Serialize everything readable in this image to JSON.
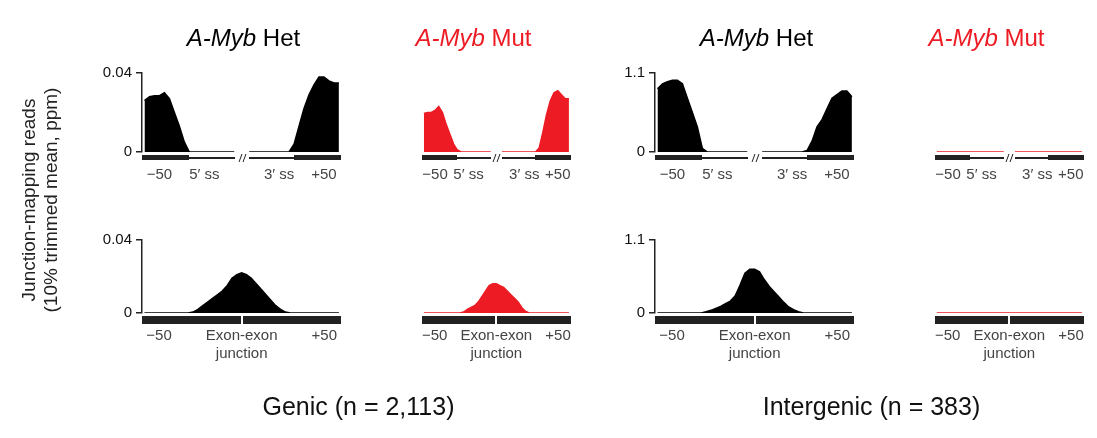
{
  "chart_data": [
    {
      "type": "area",
      "title": "A-Myb Het",
      "ylabel": "Junction-mapping reads (10% trimmed mean, ppm)",
      "categories": [
        null,
        null,
        null,
        "−50",
        null,
        null,
        null,
        null,
        null,
        null,
        null,
        null,
        "5′ ss",
        null,
        null,
        null,
        null,
        null,
        null,
        null,
        null,
        null,
        null,
        null,
        null,
        null,
        null,
        "3′ ss",
        null,
        null,
        null,
        null,
        null,
        null,
        null,
        null,
        "+50",
        null,
        null,
        null
      ],
      "ylim": [
        0,
        0.04
      ],
      "yticks": [
        0,
        0.04
      ],
      "grid": false,
      "legend": false,
      "series": [
        {
          "color": "#000000",
          "values": [
            0.026,
            0.028,
            0.0285,
            0.0285,
            0.03,
            0.027,
            0.02,
            0.013,
            0.005,
            0,
            0,
            0,
            0,
            0,
            0,
            0,
            0,
            0,
            0,
            null,
            null,
            0,
            0,
            0,
            0,
            0,
            0,
            0,
            0,
            0,
            0.004,
            0.013,
            0.022,
            0.029,
            0.034,
            0.038,
            0.038,
            0.036,
            0.035,
            0.035
          ]
        }
      ]
    },
    {
      "type": "area",
      "title": "A-Myb Mut",
      "tick_labels": "x",
      "categories": [
        null,
        null,
        null,
        "−50",
        null,
        null,
        null,
        null,
        null,
        null,
        null,
        null,
        "5′ ss",
        null,
        null,
        null,
        null,
        null,
        null,
        null,
        null,
        null,
        null,
        null,
        null,
        null,
        null,
        "3′ ss",
        null,
        null,
        null,
        null,
        null,
        null,
        null,
        null,
        "+50",
        null,
        null,
        null
      ],
      "ylim": [
        0,
        0.04
      ],
      "grid": false,
      "legend": false,
      "series": [
        {
          "color": "#ed1c24",
          "values": [
            0.0195,
            0.02,
            0.02,
            0.021,
            0.023,
            0.02,
            0.014,
            0.009,
            0.004,
            0.001,
            0,
            0,
            0,
            0,
            0,
            0,
            0,
            0,
            0,
            null,
            null,
            0,
            0,
            0,
            0,
            0,
            0,
            0,
            0,
            0,
            0,
            0.002,
            0.01,
            0.019,
            0.026,
            0.03,
            0.031,
            0.029,
            0.027,
            0.027
          ]
        }
      ]
    },
    {
      "type": "area",
      "title": "A-Myb Het",
      "categories": [
        null,
        null,
        null,
        "−50",
        null,
        null,
        null,
        null,
        null,
        null,
        null,
        null,
        "5′ ss",
        null,
        null,
        null,
        null,
        null,
        null,
        null,
        null,
        null,
        null,
        null,
        null,
        null,
        null,
        "3′ ss",
        null,
        null,
        null,
        null,
        null,
        null,
        null,
        null,
        "+50",
        null,
        null,
        null
      ],
      "ylim": [
        0,
        1.1
      ],
      "yticks": [
        0,
        1.1
      ],
      "grid": false,
      "legend": false,
      "series": [
        {
          "color": "#000000",
          "values": [
            0.88,
            0.95,
            0.98,
            1.0,
            1.0,
            0.95,
            0.75,
            0.55,
            0.35,
            0.05,
            0,
            0,
            0,
            0,
            0,
            0,
            0,
            0,
            0,
            null,
            null,
            0,
            0,
            0,
            0,
            0,
            0,
            0,
            0,
            0,
            0.02,
            0.15,
            0.35,
            0.45,
            0.6,
            0.75,
            0.8,
            0.85,
            0.85,
            0.77
          ]
        }
      ]
    },
    {
      "type": "line",
      "title": "A-Myb Mut",
      "tick_labels": "x",
      "categories": [
        null,
        null,
        null,
        "−50",
        null,
        null,
        null,
        null,
        null,
        null,
        null,
        null,
        "5′ ss",
        null,
        null,
        null,
        null,
        null,
        null,
        null,
        null,
        null,
        null,
        null,
        null,
        null,
        null,
        "3′ ss",
        null,
        null,
        null,
        null,
        null,
        null,
        null,
        null,
        "+50",
        null,
        null,
        null
      ],
      "ylim": [
        0,
        1.1
      ],
      "grid": false,
      "legend": false,
      "series": [
        {
          "color": "#ed1c24",
          "values": [
            0,
            0,
            0,
            0,
            0,
            0,
            0,
            0,
            0,
            0,
            0,
            0,
            0,
            0,
            0,
            0,
            0,
            0,
            0,
            null,
            null,
            0,
            0,
            0,
            0,
            0,
            0,
            0,
            0,
            0,
            0,
            0,
            0,
            0,
            0,
            0,
            0,
            0,
            0,
            0
          ]
        }
      ]
    },
    {
      "type": "area",
      "annotations": [
        "Genic (n = 2,113)"
      ],
      "categories": [
        null,
        null,
        null,
        "−50",
        null,
        null,
        null,
        null,
        null,
        null,
        null,
        null,
        null,
        null,
        null,
        null,
        null,
        null,
        null,
        null,
        "Exon-exon\njunction",
        null,
        null,
        null,
        null,
        null,
        null,
        null,
        null,
        null,
        null,
        null,
        null,
        null,
        null,
        null,
        null,
        "+50",
        null,
        null,
        null
      ],
      "ylim": [
        0,
        0.04
      ],
      "yticks": [
        0,
        0.04
      ],
      "grid": false,
      "legend": false,
      "series": [
        {
          "color": "#000000",
          "values": [
            0,
            0,
            0,
            0,
            0,
            0,
            0,
            0,
            0,
            0,
            0.0005,
            0.002,
            0.004,
            0.006,
            0.008,
            0.01,
            0.012,
            0.015,
            0.019,
            0.021,
            0.022,
            0.021,
            0.019,
            0.016,
            0.013,
            0.01,
            0.007,
            0.004,
            0.002,
            0.0005,
            0,
            0,
            0,
            0,
            0,
            0,
            0,
            0,
            0,
            0,
            0
          ]
        }
      ]
    },
    {
      "type": "area",
      "tick_labels": "x",
      "categories": [
        null,
        null,
        null,
        "−50",
        null,
        null,
        null,
        null,
        null,
        null,
        null,
        null,
        null,
        null,
        null,
        null,
        null,
        null,
        null,
        null,
        "Exon-exon\njunction",
        null,
        null,
        null,
        null,
        null,
        null,
        null,
        null,
        null,
        null,
        null,
        null,
        null,
        null,
        null,
        null,
        "+50",
        null,
        null,
        null
      ],
      "ylim": [
        0,
        0.04
      ],
      "grid": false,
      "legend": false,
      "series": [
        {
          "color": "#ed1c24",
          "values": [
            0,
            0,
            0,
            0,
            0,
            0,
            0,
            0,
            0,
            0,
            0,
            0.0005,
            0.002,
            0.003,
            0.004,
            0.006,
            0.009,
            0.012,
            0.015,
            0.016,
            0.016,
            0.015,
            0.014,
            0.012,
            0.01,
            0.008,
            0.006,
            0.003,
            0.001,
            0,
            0,
            0,
            0,
            0,
            0,
            0,
            0,
            0,
            0,
            0,
            0
          ]
        }
      ]
    },
    {
      "type": "area",
      "annotations": [
        "Intergenic (n = 383)"
      ],
      "categories": [
        null,
        null,
        null,
        "−50",
        null,
        null,
        null,
        null,
        null,
        null,
        null,
        null,
        null,
        null,
        null,
        null,
        null,
        null,
        null,
        null,
        "Exon-exon\njunction",
        null,
        null,
        null,
        null,
        null,
        null,
        null,
        null,
        null,
        null,
        null,
        null,
        null,
        null,
        null,
        null,
        "+50",
        null,
        null,
        null
      ],
      "ylim": [
        0,
        1.1
      ],
      "yticks": [
        0,
        1.1
      ],
      "grid": false,
      "legend": false,
      "series": [
        {
          "color": "#000000",
          "values": [
            0,
            0,
            0,
            0,
            0,
            0,
            0,
            0,
            0,
            0,
            0.02,
            0.04,
            0.07,
            0.1,
            0.14,
            0.18,
            0.26,
            0.42,
            0.6,
            0.66,
            0.66,
            0.62,
            0.5,
            0.4,
            0.32,
            0.24,
            0.16,
            0.09,
            0.05,
            0.02,
            0,
            0,
            0,
            0,
            0,
            0,
            0,
            0,
            0,
            0,
            0
          ]
        }
      ]
    },
    {
      "type": "line",
      "tick_labels": "x",
      "categories": [
        null,
        null,
        null,
        "−50",
        null,
        null,
        null,
        null,
        null,
        null,
        null,
        null,
        null,
        null,
        null,
        null,
        null,
        null,
        null,
        null,
        "Exon-exon\njunction",
        null,
        null,
        null,
        null,
        null,
        null,
        null,
        null,
        null,
        null,
        null,
        null,
        null,
        null,
        null,
        null,
        "+50",
        null,
        null,
        null
      ],
      "ylim": [
        0,
        1.1
      ],
      "grid": false,
      "legend": false,
      "series": [
        {
          "color": "#ed1c24",
          "values": [
            0,
            0,
            0,
            0,
            0,
            0,
            0,
            0,
            0,
            0,
            0,
            0,
            0,
            0,
            0,
            0,
            0,
            0,
            0,
            0,
            0,
            0,
            0,
            0,
            0,
            0,
            0,
            0,
            0,
            0,
            0,
            0,
            0,
            0,
            0,
            0,
            0,
            0,
            0,
            0,
            0
          ]
        }
      ]
    }
  ]
}
